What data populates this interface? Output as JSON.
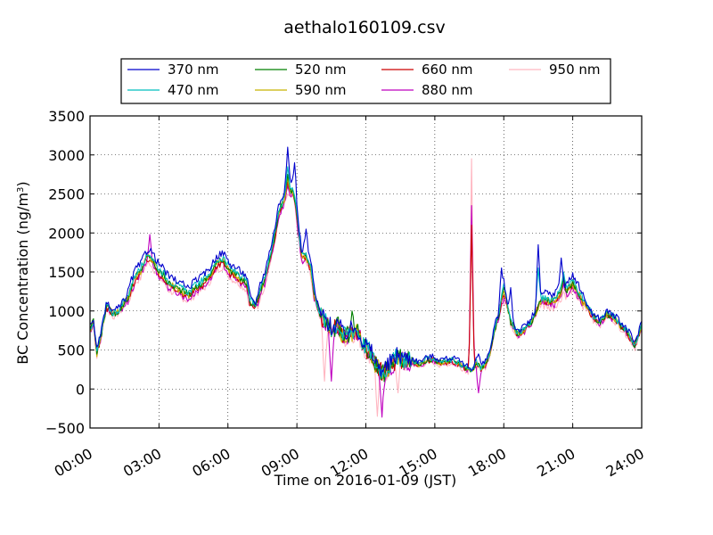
{
  "chart_data": {
    "type": "line",
    "title": "aethalo160109.csv",
    "xlabel": "Time on 2016-01-09 (JST)",
    "ylabel": "BC Concentration (ng/m",
    "ylabel_sup": "3",
    "ylabel_end": ")",
    "xlim": [
      "00:00",
      "24:00"
    ],
    "ylim": [
      -500,
      3500
    ],
    "grid": true,
    "legend_position": "top",
    "x_ticks": [
      "00:00",
      "03:00",
      "06:00",
      "09:00",
      "12:00",
      "15:00",
      "18:00",
      "21:00",
      "24:00"
    ],
    "y_ticks": [
      "−500",
      "0",
      "500",
      "1000",
      "1500",
      "2000",
      "2500",
      "3000",
      "3500"
    ],
    "base_profile": {
      "x_hours": [
        0.0,
        0.15,
        0.3,
        0.5,
        0.7,
        1.0,
        1.3,
        1.6,
        1.8,
        2.0,
        2.2,
        2.4,
        2.6,
        2.8,
        3.0,
        3.2,
        3.4,
        3.7,
        4.0,
        4.3,
        4.6,
        4.9,
        5.2,
        5.5,
        5.8,
        6.1,
        6.4,
        6.6,
        6.8,
        7.0,
        7.2,
        7.4,
        7.6,
        7.8,
        8.0,
        8.2,
        8.4,
        8.6,
        8.8,
        8.9,
        9.0,
        9.2,
        9.4,
        9.6,
        9.8,
        10.0,
        10.2,
        10.5,
        10.8,
        11.0,
        11.3,
        11.6,
        11.9,
        12.2,
        12.5,
        12.8,
        13.1,
        13.4,
        13.7,
        14.0,
        14.3,
        14.6,
        14.9,
        15.2,
        15.5,
        15.8,
        16.1,
        16.4,
        16.6,
        16.8,
        17.0,
        17.2,
        17.4,
        17.6,
        17.8,
        18.0,
        18.3,
        18.6,
        18.9,
        19.2,
        19.5,
        19.8,
        20.1,
        20.4,
        20.7,
        21.0,
        21.3,
        21.6,
        21.9,
        22.2,
        22.5,
        22.8,
        23.1,
        23.4,
        23.7,
        24.0
      ],
      "values": [
        800,
        900,
        500,
        750,
        1100,
        1000,
        1050,
        1200,
        1400,
        1550,
        1600,
        1750,
        1800,
        1700,
        1600,
        1550,
        1450,
        1400,
        1350,
        1300,
        1400,
        1450,
        1550,
        1700,
        1750,
        1600,
        1550,
        1500,
        1450,
        1150,
        1100,
        1350,
        1500,
        1750,
        2000,
        2350,
        2500,
        2600,
        2650,
        2550,
        2300,
        1800,
        1800,
        1650,
        1200,
        1000,
        900,
        800,
        850,
        700,
        750,
        800,
        600,
        500,
        300,
        250,
        350,
        450,
        400,
        400,
        350,
        400,
        420,
        380,
        390,
        400,
        350,
        300,
        250,
        380,
        300,
        350,
        500,
        800,
        1000,
        1350,
        900,
        750,
        800,
        900,
        1100,
        1250,
        1200,
        1300,
        1350,
        1450,
        1300,
        1100,
        950,
        900,
        1000,
        950,
        850,
        750,
        600,
        850
      ]
    },
    "series": [
      {
        "name": "370 nm",
        "color": "#0000cc",
        "offset": 0,
        "peaks": [
          [
            8.6,
            3100
          ],
          [
            8.9,
            2900
          ],
          [
            9.4,
            2050
          ],
          [
            17.9,
            1550
          ],
          [
            19.5,
            1850
          ],
          [
            20.5,
            1680
          ],
          [
            18.3,
            1300
          ],
          [
            16.9,
            450
          ]
        ]
      },
      {
        "name": "470 nm",
        "color": "#00bfbf",
        "offset": -60,
        "peaks": [
          [
            8.6,
            2850
          ],
          [
            18.0,
            1350
          ],
          [
            19.5,
            1550
          ],
          [
            20.6,
            1500
          ]
        ]
      },
      {
        "name": "520 nm",
        "color": "#007f00",
        "offset": -90,
        "peaks": [
          [
            8.6,
            2750
          ],
          [
            11.4,
            1000
          ],
          [
            18.0,
            1300
          ],
          [
            20.6,
            1450
          ]
        ]
      },
      {
        "name": "590 nm",
        "color": "#c8b400",
        "offset": -100,
        "peaks": [
          [
            8.6,
            2700
          ],
          [
            18.0,
            1250
          ],
          [
            20.6,
            1400
          ]
        ]
      },
      {
        "name": "660 nm",
        "color": "#cc0000",
        "offset": -120,
        "peaks": [
          [
            8.6,
            2650
          ],
          [
            16.6,
            2100
          ],
          [
            18.0,
            1200
          ],
          [
            20.6,
            1400
          ]
        ]
      },
      {
        "name": "880 nm",
        "color": "#bf00bf",
        "offset": -150,
        "peaks": [
          [
            2.6,
            1980
          ],
          [
            8.6,
            2600
          ],
          [
            16.6,
            2350
          ],
          [
            16.9,
            -50
          ],
          [
            12.7,
            -360
          ],
          [
            10.5,
            100
          ],
          [
            20.6,
            1350
          ]
        ]
      },
      {
        "name": "950 nm",
        "color": "#ffb6c1",
        "offset": -180,
        "peaks": [
          [
            8.6,
            2500
          ],
          [
            16.6,
            2950
          ],
          [
            12.5,
            -350
          ],
          [
            13.4,
            -50
          ],
          [
            10.2,
            100
          ],
          [
            20.6,
            1250
          ]
        ]
      }
    ]
  }
}
